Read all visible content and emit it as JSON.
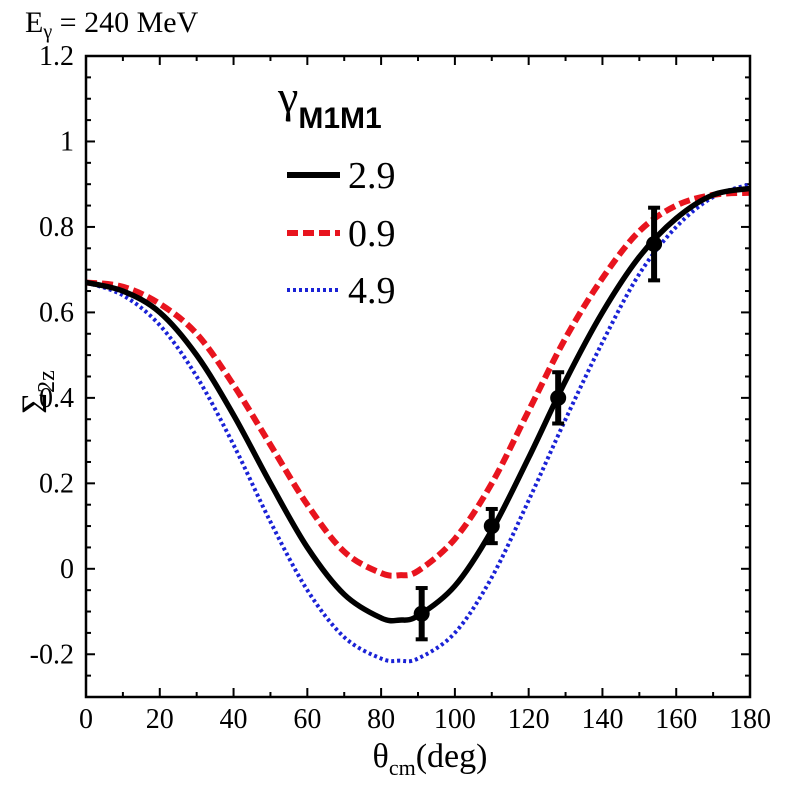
{
  "chart_data": {
    "type": "line",
    "title_main": "E",
    "title_sub": "γ",
    "title_rest": " = 240 MeV",
    "xlabel_main": "θ",
    "xlabel_sub": "cm",
    "xlabel_rest": "(deg)",
    "ylabel_main": "Σ",
    "ylabel_sub": "2z",
    "xlim": [
      0,
      180
    ],
    "ylim": [
      -0.3,
      1.2
    ],
    "xticks": [
      0,
      20,
      40,
      60,
      80,
      100,
      120,
      140,
      160,
      180
    ],
    "xtick_labels": [
      "0",
      "20",
      "40",
      "60",
      "80",
      "100",
      "120",
      "140",
      "160",
      "180"
    ],
    "yticks": [
      -0.2,
      0,
      0.2,
      0.4,
      0.6,
      0.8,
      1,
      1.2
    ],
    "ytick_labels": [
      "-0.2",
      "0",
      "0.2",
      "0.4",
      "0.6",
      "0.8",
      "1",
      "1.2"
    ],
    "legend_title_main": "γ",
    "legend_title_sub": "M1M1",
    "legend_position": "top-left",
    "series": [
      {
        "name": "2.9",
        "style": "solid",
        "color": "#000000",
        "x": [
          0,
          10,
          20,
          30,
          40,
          50,
          60,
          70,
          80,
          85,
          90,
          100,
          110,
          120,
          130,
          140,
          150,
          160,
          170,
          180
        ],
        "y": [
          0.67,
          0.65,
          0.6,
          0.5,
          0.36,
          0.2,
          0.05,
          -0.06,
          -0.115,
          -0.12,
          -0.11,
          -0.04,
          0.09,
          0.26,
          0.44,
          0.6,
          0.73,
          0.82,
          0.875,
          0.89
        ]
      },
      {
        "name": "0.9",
        "style": "dashed",
        "color": "#e8141e",
        "x": [
          0,
          10,
          20,
          30,
          40,
          50,
          60,
          70,
          80,
          85,
          90,
          100,
          110,
          120,
          130,
          140,
          150,
          160,
          170,
          180
        ],
        "y": [
          0.67,
          0.66,
          0.62,
          0.55,
          0.43,
          0.29,
          0.15,
          0.04,
          -0.01,
          -0.015,
          -0.005,
          0.07,
          0.2,
          0.37,
          0.54,
          0.68,
          0.79,
          0.85,
          0.875,
          0.88
        ]
      },
      {
        "name": "4.9",
        "style": "dotted",
        "color": "#1a22d6",
        "x": [
          0,
          10,
          20,
          30,
          40,
          50,
          60,
          70,
          80,
          85,
          90,
          100,
          110,
          120,
          130,
          140,
          150,
          160,
          170,
          180
        ],
        "y": [
          0.67,
          0.64,
          0.57,
          0.45,
          0.29,
          0.11,
          -0.05,
          -0.16,
          -0.21,
          -0.215,
          -0.21,
          -0.15,
          -0.02,
          0.16,
          0.35,
          0.53,
          0.69,
          0.8,
          0.87,
          0.9
        ]
      }
    ],
    "data_points": {
      "name": "data",
      "color": "#000000",
      "x": [
        91,
        110,
        128,
        154
      ],
      "y": [
        -0.105,
        0.1,
        0.4,
        0.76
      ],
      "yerr": [
        0.06,
        0.04,
        0.06,
        0.085
      ]
    }
  }
}
